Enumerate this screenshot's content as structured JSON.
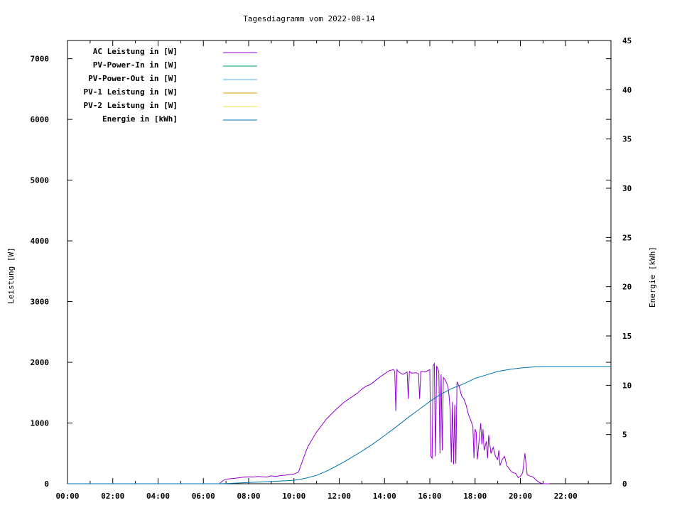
{
  "chart_data": {
    "type": "line",
    "title": "Tagesdiagramm vom 2022-08-14",
    "ylabel": "Leistung [W]",
    "y2label": "Energie [kWh]",
    "xlabel": "",
    "x_unit": "hours",
    "xlim": [
      0,
      24
    ],
    "ylim": [
      0,
      7300
    ],
    "y2lim": [
      0,
      45
    ],
    "x_ticks": [
      "00:00",
      "02:00",
      "04:00",
      "06:00",
      "08:00",
      "10:00",
      "12:00",
      "14:00",
      "16:00",
      "18:00",
      "20:00",
      "22:00"
    ],
    "y_ticks": [
      "0",
      "1000",
      "2000",
      "3000",
      "4000",
      "5000",
      "6000",
      "7000"
    ],
    "y2_ticks": [
      "0",
      "5",
      "10",
      "15",
      "20",
      "25",
      "30",
      "35",
      "40",
      "45"
    ],
    "grid": false,
    "legend_position": "top-left",
    "legend": [
      {
        "label": "AC Leistung in [W]",
        "color": "#9400d3"
      },
      {
        "label": "PV-Power-In in [W]",
        "color": "#009e73"
      },
      {
        "label": "PV-Power-Out in [W]",
        "color": "#56b4e9"
      },
      {
        "label": "PV-1 Leistung in [W]",
        "color": "#e69f00"
      },
      {
        "label": "PV-2 Leistung in [W]",
        "color": "#f0e442"
      },
      {
        "label": "Energie in [kWh]",
        "color": "#0072b2"
      }
    ],
    "series": [
      {
        "name": "AC Leistung in [W]",
        "axis": "y",
        "color": "#9400d3",
        "x": [
          6.7,
          6.9,
          7.1,
          7.4,
          7.6,
          7.8,
          8.0,
          8.2,
          8.4,
          8.6,
          8.8,
          9.0,
          9.2,
          9.4,
          9.6,
          9.8,
          10.0,
          10.2,
          10.4,
          10.6,
          10.8,
          11.0,
          11.2,
          11.4,
          11.6,
          11.8,
          12.0,
          12.2,
          12.4,
          12.6,
          12.8,
          13.0,
          13.2,
          13.4,
          13.6,
          13.8,
          14.0,
          14.2,
          14.4,
          14.45,
          14.5,
          14.55,
          14.6,
          14.8,
          15.0,
          15.05,
          15.1,
          15.2,
          15.4,
          15.5,
          15.55,
          15.6,
          15.7,
          15.8,
          15.9,
          16.0,
          16.05,
          16.1,
          16.15,
          16.2,
          16.25,
          16.3,
          16.4,
          16.45,
          16.5,
          16.55,
          16.6,
          16.7,
          16.8,
          16.85,
          16.9,
          16.95,
          17.0,
          17.05,
          17.1,
          17.15,
          17.2,
          17.3,
          17.4,
          17.5,
          17.6,
          17.7,
          17.8,
          17.9,
          17.95,
          18.0,
          18.05,
          18.1,
          18.2,
          18.25,
          18.3,
          18.35,
          18.4,
          18.5,
          18.55,
          18.6,
          18.7,
          18.8,
          18.9,
          19.0,
          19.05,
          19.1,
          19.2,
          19.3,
          19.4,
          19.5,
          19.6,
          19.7,
          19.8,
          19.9,
          20.0,
          20.1,
          20.2,
          20.3,
          20.4,
          20.5,
          20.6,
          20.7,
          20.8,
          20.9,
          21.0,
          21.1,
          21.3
        ],
        "values": [
          0,
          60,
          80,
          90,
          100,
          110,
          115,
          110,
          120,
          115,
          110,
          130,
          120,
          135,
          140,
          150,
          160,
          190,
          400,
          600,
          730,
          850,
          950,
          1050,
          1130,
          1200,
          1270,
          1340,
          1390,
          1440,
          1490,
          1560,
          1610,
          1640,
          1700,
          1760,
          1810,
          1860,
          1880,
          1850,
          1200,
          1880,
          1850,
          1800,
          1840,
          1400,
          1850,
          1820,
          1830,
          1810,
          1400,
          1850,
          1850,
          1840,
          1860,
          1880,
          450,
          420,
          1950,
          1980,
          450,
          1940,
          1850,
          500,
          1800,
          550,
          1750,
          1700,
          1600,
          1450,
          1200,
          350,
          1350,
          320,
          1300,
          330,
          1680,
          1600,
          1450,
          1400,
          1300,
          1150,
          1050,
          950,
          420,
          900,
          850,
          400,
          800,
          1000,
          650,
          900,
          550,
          700,
          420,
          800,
          500,
          600,
          450,
          400,
          550,
          300,
          400,
          450,
          300,
          250,
          200,
          180,
          170,
          100,
          120,
          180,
          500,
          150,
          130,
          120,
          100,
          60,
          30,
          10,
          0,
          0,
          0
        ]
      },
      {
        "name": "Energie in [kWh]",
        "axis": "y2",
        "color": "#0072b2",
        "x": [
          0,
          6.7,
          7.0,
          8.0,
          9.0,
          10.0,
          10.5,
          11.0,
          11.5,
          12.0,
          12.5,
          13.0,
          13.5,
          14.0,
          14.5,
          15.0,
          15.5,
          16.0,
          16.5,
          17.0,
          17.5,
          18.0,
          18.5,
          19.0,
          19.5,
          20.0,
          20.5,
          21.0,
          21.5,
          22.0,
          23.0,
          24.0
        ],
        "values": [
          0,
          0,
          0.02,
          0.12,
          0.22,
          0.35,
          0.55,
          0.85,
          1.35,
          1.95,
          2.6,
          3.3,
          4.05,
          4.9,
          5.75,
          6.65,
          7.5,
          8.35,
          9.1,
          9.7,
          10.15,
          10.7,
          11.05,
          11.4,
          11.6,
          11.75,
          11.85,
          11.9,
          11.9,
          11.9,
          11.9,
          11.9
        ]
      }
    ]
  }
}
